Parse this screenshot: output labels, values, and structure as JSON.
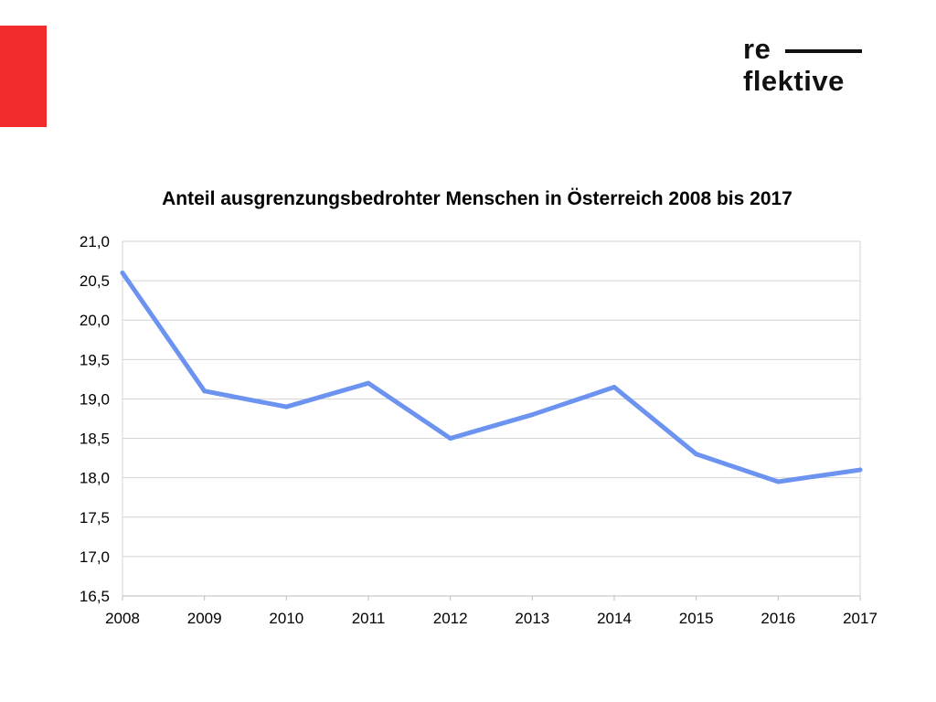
{
  "colors": {
    "accent": "#f22c2c",
    "line": "#6c93ef",
    "grid": "#d4d4d4",
    "axis": "#bdbdbd"
  },
  "logo": {
    "line1": "re",
    "line2": "flektive"
  },
  "chart_data": {
    "type": "line",
    "title": "Anteil ausgrenzungsbedrohter Menschen in Österreich 2008 bis 2017",
    "xlabel": "",
    "ylabel": "",
    "x": [
      "2008",
      "2009",
      "2010",
      "2011",
      "2012",
      "2013",
      "2014",
      "2015",
      "2016",
      "2017"
    ],
    "series": [
      {
        "values": [
          20.6,
          19.1,
          18.9,
          19.2,
          18.5,
          18.8,
          19.15,
          18.3,
          17.95,
          18.1
        ]
      }
    ],
    "ylim": [
      16.5,
      21.0
    ],
    "y_ticks": [
      "16,5",
      "17,0",
      "17,5",
      "18,0",
      "18,5",
      "19,0",
      "19,5",
      "20,0",
      "20,5",
      "21,0"
    ],
    "grid": true,
    "legend": "none"
  }
}
